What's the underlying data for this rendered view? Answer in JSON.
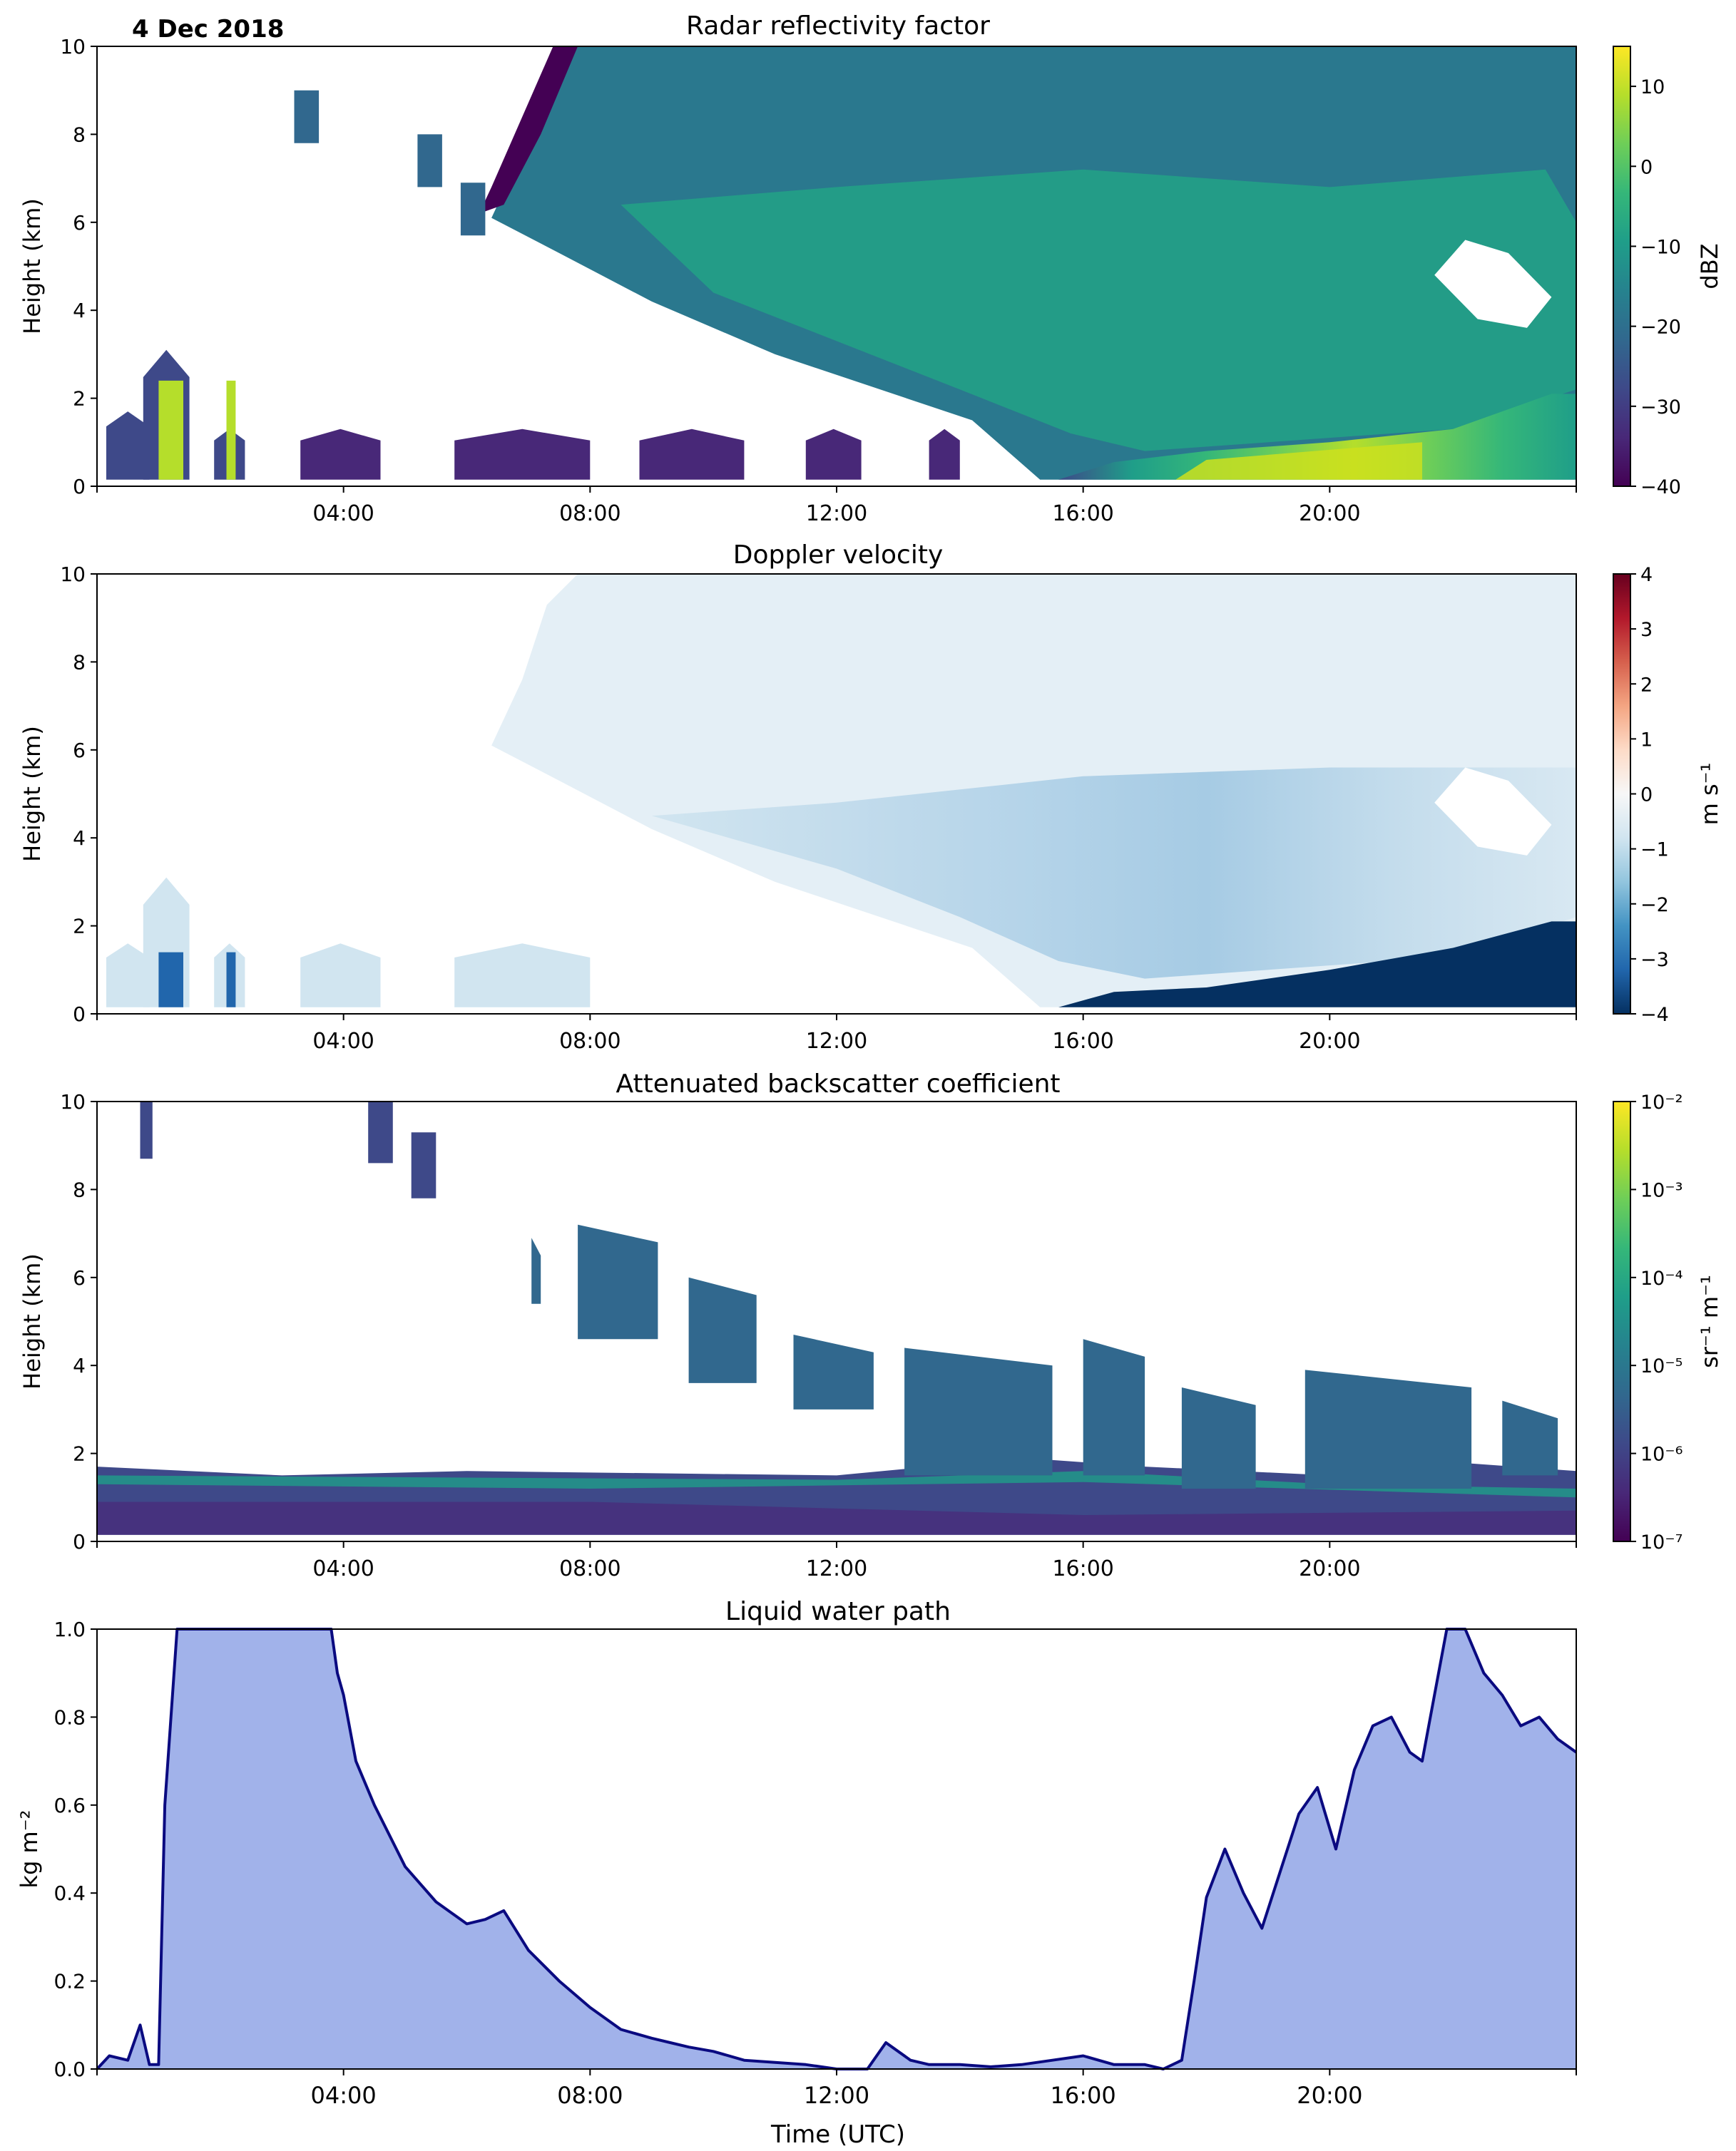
{
  "figure": {
    "date_label": "4 Dec 2018",
    "x_tick_labels": [
      "04:00",
      "08:00",
      "12:00",
      "16:00",
      "20:00"
    ],
    "x_ticks_hours": [
      4,
      8,
      12,
      16,
      20
    ],
    "x_range_hours": [
      0,
      24
    ],
    "xlabel": "Time (UTC)"
  },
  "chart_data": [
    {
      "type": "heatmap",
      "title": "Radar reflectivity factor",
      "ylabel": "Height (km)",
      "ylim": [
        0,
        10
      ],
      "y_ticks": [
        "0",
        "2",
        "4",
        "6",
        "8",
        "10"
      ],
      "colorbar": {
        "label": "dBZ",
        "range": [
          -40,
          15
        ],
        "ticks": [
          "10",
          "0",
          "−10",
          "−20",
          "−30",
          "−40"
        ],
        "tick_values": [
          10,
          0,
          -10,
          -20,
          -30,
          -40
        ],
        "colormap": "viridis"
      }
    },
    {
      "type": "heatmap",
      "title": "Doppler velocity",
      "ylabel": "Height (km)",
      "ylim": [
        0,
        10
      ],
      "y_ticks": [
        "0",
        "2",
        "4",
        "6",
        "8",
        "10"
      ],
      "colorbar": {
        "label": "m s⁻¹",
        "range": [
          -4,
          4
        ],
        "ticks": [
          "4",
          "3",
          "2",
          "1",
          "0",
          "−1",
          "−2",
          "−3",
          "−4"
        ],
        "tick_values": [
          4,
          3,
          2,
          1,
          0,
          -1,
          -2,
          -3,
          -4
        ],
        "colormap": "RdBu_r"
      }
    },
    {
      "type": "heatmap",
      "title": "Attenuated backscatter coefficient",
      "ylabel": "Height (km)",
      "ylim": [
        0,
        10
      ],
      "y_ticks": [
        "0",
        "2",
        "4",
        "6",
        "8",
        "10"
      ],
      "colorbar": {
        "label": "sr⁻¹ m⁻¹",
        "scale": "log",
        "range": [
          1e-07,
          0.01
        ],
        "ticks": [
          "10⁻²",
          "10⁻³",
          "10⁻⁴",
          "10⁻⁵",
          "10⁻⁶",
          "10⁻⁷"
        ],
        "colormap": "viridis"
      }
    },
    {
      "type": "area",
      "title": "Liquid water path",
      "ylabel": "kg m⁻²",
      "xlabel": "Time (UTC)",
      "ylim": [
        0,
        1.0
      ],
      "y_ticks": [
        "0.0",
        "0.2",
        "0.4",
        "0.6",
        "0.8",
        "1.0"
      ],
      "line_color": "#0a0a80",
      "fill_color": "#a1b2ea",
      "x_hours": [
        0,
        0.2,
        0.5,
        0.7,
        0.85,
        1.0,
        1.1,
        1.3,
        1.5,
        2.0,
        2.5,
        3.0,
        3.5,
        3.8,
        3.9,
        4.0,
        4.2,
        4.5,
        5.0,
        5.5,
        6.0,
        6.3,
        6.6,
        7.0,
        7.5,
        8.0,
        8.5,
        9.0,
        9.3,
        9.6,
        10.0,
        10.5,
        11.0,
        11.5,
        12.0,
        12.5,
        12.8,
        13.2,
        13.5,
        14.0,
        14.5,
        15.0,
        15.5,
        16.0,
        16.5,
        17.0,
        17.3,
        17.6,
        17.8,
        18.0,
        18.3,
        18.6,
        18.9,
        19.2,
        19.5,
        19.8,
        20.1,
        20.4,
        20.7,
        21.0,
        21.3,
        21.5,
        21.7,
        21.9,
        22.2,
        22.5,
        22.8,
        23.1,
        23.4,
        23.7,
        24.0
      ],
      "values": [
        0.0,
        0.03,
        0.02,
        0.1,
        0.01,
        0.01,
        0.6,
        1.0,
        1.0,
        1.0,
        1.0,
        1.0,
        1.0,
        1.0,
        0.9,
        0.85,
        0.7,
        0.6,
        0.46,
        0.38,
        0.33,
        0.34,
        0.36,
        0.27,
        0.2,
        0.14,
        0.09,
        0.07,
        0.06,
        0.05,
        0.04,
        0.02,
        0.015,
        0.01,
        0.0,
        0.0,
        0.06,
        0.02,
        0.01,
        0.01,
        0.005,
        0.01,
        0.02,
        0.03,
        0.01,
        0.01,
        0.0,
        0.02,
        0.2,
        0.39,
        0.5,
        0.4,
        0.32,
        0.45,
        0.58,
        0.64,
        0.5,
        0.68,
        0.78,
        0.8,
        0.72,
        0.7,
        0.85,
        1.0,
        1.0,
        0.9,
        0.85,
        0.78,
        0.8,
        0.75,
        0.72
      ]
    }
  ]
}
